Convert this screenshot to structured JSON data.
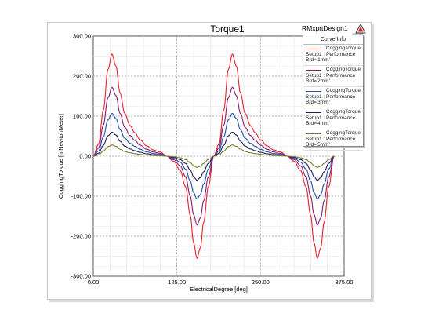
{
  "chart_data": {
    "type": "line",
    "title": "Torque1",
    "design_name": "RMxprtDesign1",
    "xlabel": "ElectricalDegree [deg]",
    "ylabel": "CoggingTorque [mNewtonMeter]",
    "xlim": [
      0,
      375
    ],
    "ylim": [
      -300,
      300
    ],
    "x_ticks": [
      "0.00",
      "125.00",
      "250.00",
      "375.00"
    ],
    "y_ticks": [
      "300.00",
      "200.00",
      "100.00",
      "0.00",
      "-100.00",
      "-200.00",
      "-300.00"
    ],
    "grid": true,
    "legend": {
      "title": "Curve Info",
      "placement": "top-right"
    },
    "series": [
      {
        "name": "CoggingTorque",
        "setup": "Setup1 : Performance",
        "param": "Brd='1mm'",
        "color": "#e8202a",
        "amplitude": 255
      },
      {
        "name": "CoggingTorque",
        "setup": "Setup1 : Performance",
        "param": "Brd='2mm'",
        "color": "#8a1a70",
        "amplitude": 172
      },
      {
        "name": "CoggingTorque",
        "setup": "Setup1 : Performance",
        "param": "Brd='3mm'",
        "color": "#1f4fa8",
        "amplitude": 107
      },
      {
        "name": "CoggingTorque",
        "setup": "Setup1 : Performance",
        "param": "Brd='4mm'",
        "color": "#1c1f5a",
        "amplitude": 60
      },
      {
        "name": "CoggingTorque",
        "setup": "Setup1 : Performance",
        "param": "Brd='5mm'",
        "color": "#7a7a2a",
        "amplitude": 28
      }
    ],
    "shape": {
      "x": [
        0,
        8,
        15,
        22,
        28,
        34,
        40,
        47,
        55,
        62,
        70,
        80,
        90,
        100,
        110,
        120,
        130,
        138,
        145,
        150,
        155,
        160,
        165,
        172,
        180
      ],
      "y_normalized": [
        0,
        0.12,
        0.45,
        0.85,
        1.0,
        0.88,
        0.62,
        0.42,
        0.3,
        0.23,
        0.16,
        0.1,
        0.06,
        0.04,
        0.0,
        -0.05,
        -0.14,
        -0.3,
        -0.58,
        -0.85,
        -1.0,
        -0.9,
        -0.65,
        -0.3,
        0.0
      ]
    }
  }
}
